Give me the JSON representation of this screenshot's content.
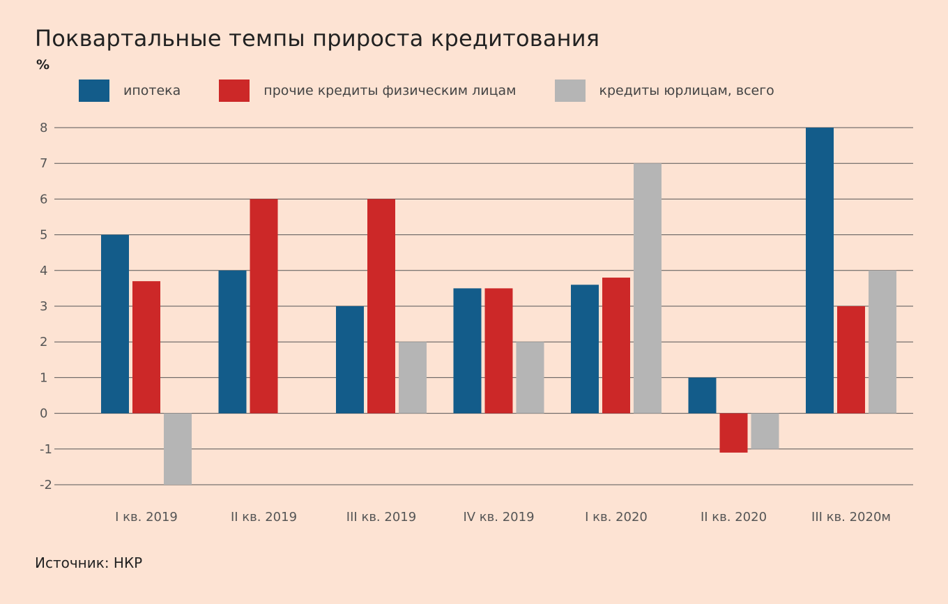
{
  "chart_data": {
    "type": "bar",
    "title": "Поквартальные темпы прироста кредитования",
    "ylabel": "%",
    "categories": [
      "I кв. 2019",
      "II кв. 2019",
      "III кв. 2019",
      "IV кв. 2019",
      "I кв. 2020",
      "II кв. 2020",
      "III кв. 2020м"
    ],
    "series": [
      {
        "name": "ипотека",
        "color": "#135c8a",
        "values": [
          5,
          4,
          3,
          3.5,
          3.6,
          1,
          8
        ]
      },
      {
        "name": "прочие кредиты физическим лицам",
        "color": "#cc2828",
        "values": [
          3.7,
          6,
          6,
          3.5,
          3.8,
          -1.1,
          3
        ]
      },
      {
        "name": "кредиты юрлицам, всего",
        "color": "#b5b5b5",
        "values": [
          -2,
          0,
          2,
          2,
          7,
          -1,
          4
        ]
      }
    ],
    "ylim": [
      -2,
      8
    ],
    "yticks": [
      "8",
      "7",
      "6",
      "5",
      "4",
      "3",
      "2",
      "1",
      "0",
      "-1",
      "-2"
    ],
    "grid": true,
    "legend": "top"
  },
  "source": "Источник: НКР"
}
